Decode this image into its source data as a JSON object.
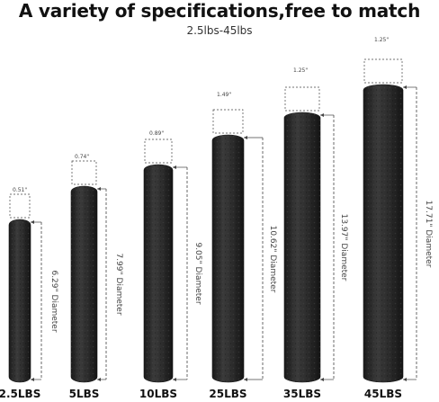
{
  "header": {
    "title": "A variety of specifications,free to match",
    "subtitle": "2.5lbs-45lbs"
  },
  "colors": {
    "plate": "#2a2a2a",
    "plate_edge": "#151515",
    "dimension_line": "#444444"
  },
  "plates": [
    {
      "label": "2.5LBS",
      "thickness": "0.51\"",
      "diameter": "6.29\" Diameter"
    },
    {
      "label": "5LBS",
      "thickness": "0.74\"",
      "diameter": "7.99\" Diameter"
    },
    {
      "label": "10LBS",
      "thickness": "0.89\"",
      "diameter": "9.05\" Diameter"
    },
    {
      "label": "25LBS",
      "thickness": "1.49\"",
      "diameter": "10.62\" Diameter"
    },
    {
      "label": "35LBS",
      "thickness": "1.25\"",
      "diameter": "13.97\" Diameter"
    },
    {
      "label": "45LBS",
      "thickness": "1.25\"",
      "diameter": "17.71\" Diameter"
    }
  ]
}
